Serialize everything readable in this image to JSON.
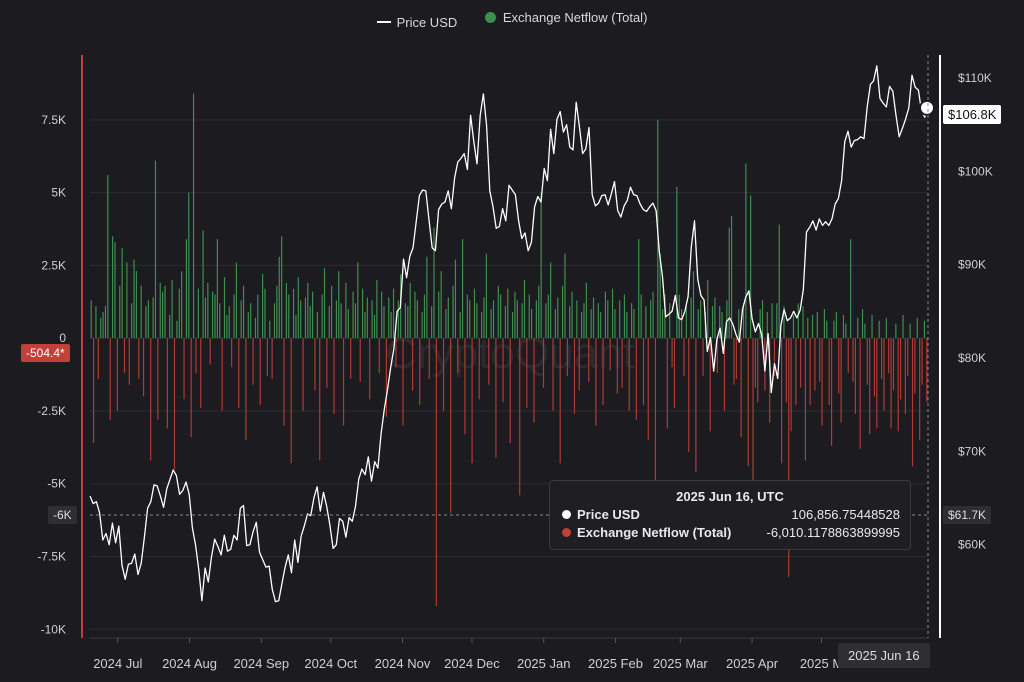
{
  "legend": {
    "price_label": "Price USD",
    "netflow_label": "Exchange Netflow (Total)"
  },
  "colors": {
    "background": "#1c1b1f",
    "inflow": "#3e8e4f",
    "outflow": "#b03a34",
    "price": "#ffffff",
    "grid": "#2c2c31",
    "left_axis": "#c2403a"
  },
  "watermark": "CryptoQuant",
  "tooltip": {
    "title": "2025 Jun 16, UTC",
    "price_label": "Price USD",
    "price_value": "106,856.75448528",
    "netflow_label": "Exchange Netflow (Total)",
    "netflow_value": "-6,010.1178863899995"
  },
  "badges": {
    "left_value": "-504.4*",
    "left_crosshair": "-6K",
    "right_price": "$106.8K",
    "right_crosshair": "$61.7K",
    "x_crosshair": "2025 Jun 16"
  },
  "chart_data": {
    "type": "bar",
    "left_axis": {
      "ticks": [
        7500,
        5000,
        2500,
        0,
        -2500,
        -5000,
        -7500,
        -10000
      ],
      "tick_labels": [
        "7.5K",
        "5K",
        "2.5K",
        "0",
        "-2.5K",
        "-5K",
        "-7.5K",
        "-10K"
      ],
      "range": [
        -10300,
        9900
      ]
    },
    "right_axis": {
      "ticks": [
        110000,
        100000,
        90000,
        80000,
        70000,
        60000
      ],
      "tick_labels": [
        "$110K",
        "$100K",
        "$90K",
        "$80K",
        "$70K",
        "$60K"
      ],
      "range": [
        50000,
        113000
      ]
    },
    "x_axis": {
      "labels": [
        "2024 Jul",
        "2024 Aug",
        "2024 Sep",
        "2024 Oct",
        "2024 Nov",
        "2024 Dec",
        "2025 Jan",
        "2025 Feb",
        "2025 Mar",
        "2025 Apr",
        "2025 M"
      ],
      "start": "2024-06-19",
      "end": "2025-06-16"
    },
    "series": [
      {
        "name": "Exchange Netflow (Total)",
        "kind": "bar",
        "values": [
          1300,
          -3600,
          1100,
          -1400,
          700,
          900,
          1100,
          5600,
          -2800,
          3500,
          3300,
          -2500,
          1800,
          3100,
          -1200,
          2600,
          -1600,
          1200,
          2700,
          2300,
          -1400,
          1800,
          -2000,
          1100,
          1300,
          -4200,
          1400,
          6100,
          -2800,
          1900,
          1600,
          1800,
          -3100,
          800,
          2000,
          -4500,
          600,
          1700,
          2300,
          -2100,
          3400,
          5000,
          -3400,
          8400,
          -1200,
          1700,
          -2400,
          3700,
          1400,
          1900,
          -900,
          1600,
          1500,
          3400,
          1200,
          -2500,
          2100,
          800,
          1100,
          -1000,
          1500,
          2600,
          -2400,
          1300,
          1800,
          -3500,
          900,
          1200,
          -1600,
          700,
          1500,
          -2300,
          2200,
          1700,
          -1300,
          600,
          -1400,
          1200,
          1800,
          2800,
          3500,
          -3000,
          1900,
          1500,
          -4300,
          1700,
          800,
          2100,
          1300,
          -2500,
          1400,
          1900,
          1100,
          1600,
          -1800,
          900,
          -4200,
          1500,
          2400,
          -1700,
          1100,
          1800,
          -2600,
          1300,
          2300,
          1200,
          -3000,
          1900,
          1000,
          -1400,
          1600,
          1200,
          2600,
          -1500,
          1700,
          900,
          1400,
          -2100,
          1300,
          800,
          2000,
          -1200,
          1600,
          1100,
          -2700,
          1400,
          900,
          1700,
          -1000,
          1300,
          2200,
          -3000,
          1200,
          1100,
          1900,
          -1800,
          1600,
          1300,
          -2300,
          900,
          1500,
          2800,
          -1400,
          1100,
          3800,
          -9200,
          1600,
          2300,
          -2500,
          1000,
          1400,
          -6000,
          1800,
          2700,
          -1200,
          900,
          3400,
          -3300,
          1500,
          1300,
          -4300,
          1700,
          1200,
          -2100,
          900,
          1400,
          2900,
          -1600,
          1000,
          1300,
          -4100,
          1800,
          1500,
          -2200,
          1100,
          1700,
          -3600,
          900,
          1600,
          1300,
          -5400,
          1200,
          2000,
          -2400,
          1500,
          1000,
          -2900,
          1300,
          1800,
          5000,
          -1700,
          1200,
          1500,
          2600,
          -2500,
          1000,
          1400,
          -4300,
          1800,
          2900,
          -1300,
          1100,
          1600,
          -2600,
          1300,
          -1800,
          900,
          1200,
          1900,
          -1500,
          1000,
          1400,
          -3000,
          1200,
          900,
          -2300,
          1600,
          1300,
          -1100,
          1700,
          1000,
          -1900,
          1300,
          -1700,
          1500,
          900,
          -2500,
          1200,
          1000,
          -2800,
          3400,
          1500,
          -2300,
          1100,
          -3500,
          1300,
          1600,
          -5000,
          7500,
          2900,
          1000,
          1500,
          -3100,
          1200,
          -1000,
          -2400,
          5200,
          1500,
          1000,
          -1300,
          1100,
          -3900,
          1400,
          2300,
          -4600,
          1000,
          1300,
          -1300,
          900,
          2000,
          -3200,
          1100,
          1400,
          -1200,
          1100,
          900,
          -2500,
          1300,
          3800,
          4200,
          -1600,
          -1400,
          1000,
          -3400,
          1200,
          6000,
          -4400,
          4900,
          -5900,
          -1700,
          -2200,
          1000,
          1300,
          -1800,
          900,
          -2900,
          1200,
          -1300,
          1200,
          3900,
          -4300,
          1100,
          -2200,
          -8200,
          -3200,
          800,
          -2300,
          1200,
          -1700,
          1100,
          -4200,
          700,
          -2300,
          800,
          -1800,
          900,
          -1500,
          -3000,
          1000,
          600,
          -2300,
          -3700,
          600,
          900,
          -1900,
          -2900,
          800,
          500,
          -1200,
          3400,
          -1500,
          -2600,
          700,
          -3800,
          1000,
          500,
          -1600,
          -3300,
          800,
          -2000,
          -3100,
          600,
          -1400,
          -2500,
          700,
          -1200,
          -3100,
          -1800,
          500,
          -3200,
          -2100,
          800,
          -2600,
          -1300,
          500,
          -4400,
          -1900,
          700,
          -3500,
          -1600,
          600,
          -2200
        ]
      },
      {
        "name": "Price USD",
        "kind": "line",
        "values": [
          65200,
          64400,
          64600,
          63400,
          60500,
          61200,
          60000,
          62300,
          60200,
          62000,
          57800,
          56300,
          57900,
          58000,
          59000,
          56800,
          58000,
          60800,
          63900,
          64600,
          66400,
          66300,
          65200,
          64000,
          66000,
          67000,
          68000,
          67400,
          65400,
          65800,
          66700,
          65400,
          61800,
          60000,
          57400,
          54000,
          57500,
          56000,
          58700,
          60600,
          59800,
          58900,
          61000,
          59300,
          59500,
          61000,
          60500,
          63900,
          64200,
          59900,
          60000,
          61400,
          62400,
          59200,
          58400,
          57600,
          57700,
          55200,
          53900,
          54000,
          55800,
          57600,
          58900,
          57000,
          60500,
          58100,
          60900,
          62000,
          63300,
          63100,
          65000,
          66200,
          63600,
          65600,
          64100,
          62100,
          59600,
          60000,
          62800,
          62500,
          60800,
          62900,
          62500,
          64100,
          67000,
          68100,
          67500,
          69400,
          66800,
          68900,
          68200,
          71900,
          74500,
          76600,
          79000,
          81000,
          85000,
          85400,
          90600,
          88600,
          90900,
          91800,
          94600,
          97400,
          98000,
          97900,
          94800,
          91800,
          91500,
          95900,
          96500,
          96700,
          97900,
          96000,
          99300,
          101000,
          101400,
          101900,
          100200,
          106000,
          103200,
          100800,
          106000,
          108300,
          104900,
          97900,
          96200,
          93900,
          94100,
          96000,
          94700,
          98500,
          98000,
          97500,
          94700,
          92800,
          93400,
          91500,
          92400,
          96200,
          97300,
          96700,
          100300,
          99000,
          104500,
          101900,
          105600,
          106400,
          104200,
          105000,
          102600,
          102300,
          107400,
          104800,
          101900,
          102400,
          104700,
          97500,
          96300,
          96600,
          97400,
          97500,
          96400,
          97600,
          98900,
          95800,
          95100,
          96300,
          96900,
          98300,
          97500,
          97400,
          96500,
          95900,
          95700,
          96200,
          96600,
          95800,
          91400,
          88700,
          84400,
          84700,
          85000,
          86700,
          84300,
          84100,
          85000,
          86600,
          91900,
          94700,
          88500,
          86700,
          86200,
          80700,
          82200,
          78600,
          82000,
          83200,
          80500,
          83900,
          84300,
          83600,
          82500,
          81700,
          85200,
          86500,
          87200,
          84200,
          82800,
          83700,
          82500,
          78600,
          82600,
          76300,
          79400,
          77800,
          83500,
          85200,
          84000,
          84300,
          85000,
          84300,
          85100,
          87300,
          93500,
          94000,
          94700,
          93700,
          94900,
          94200,
          94600,
          94200,
          94900,
          96500,
          97100,
          99000,
          103200,
          104300,
          102600,
          103300,
          103400,
          103700,
          103500,
          106900,
          109300,
          109700,
          111300,
          107800,
          107300,
          106900,
          109100,
          108600,
          106000,
          103700,
          104600,
          105600,
          106800,
          110300,
          109000,
          108700,
          106400,
          105800,
          106800
        ]
      }
    ]
  }
}
